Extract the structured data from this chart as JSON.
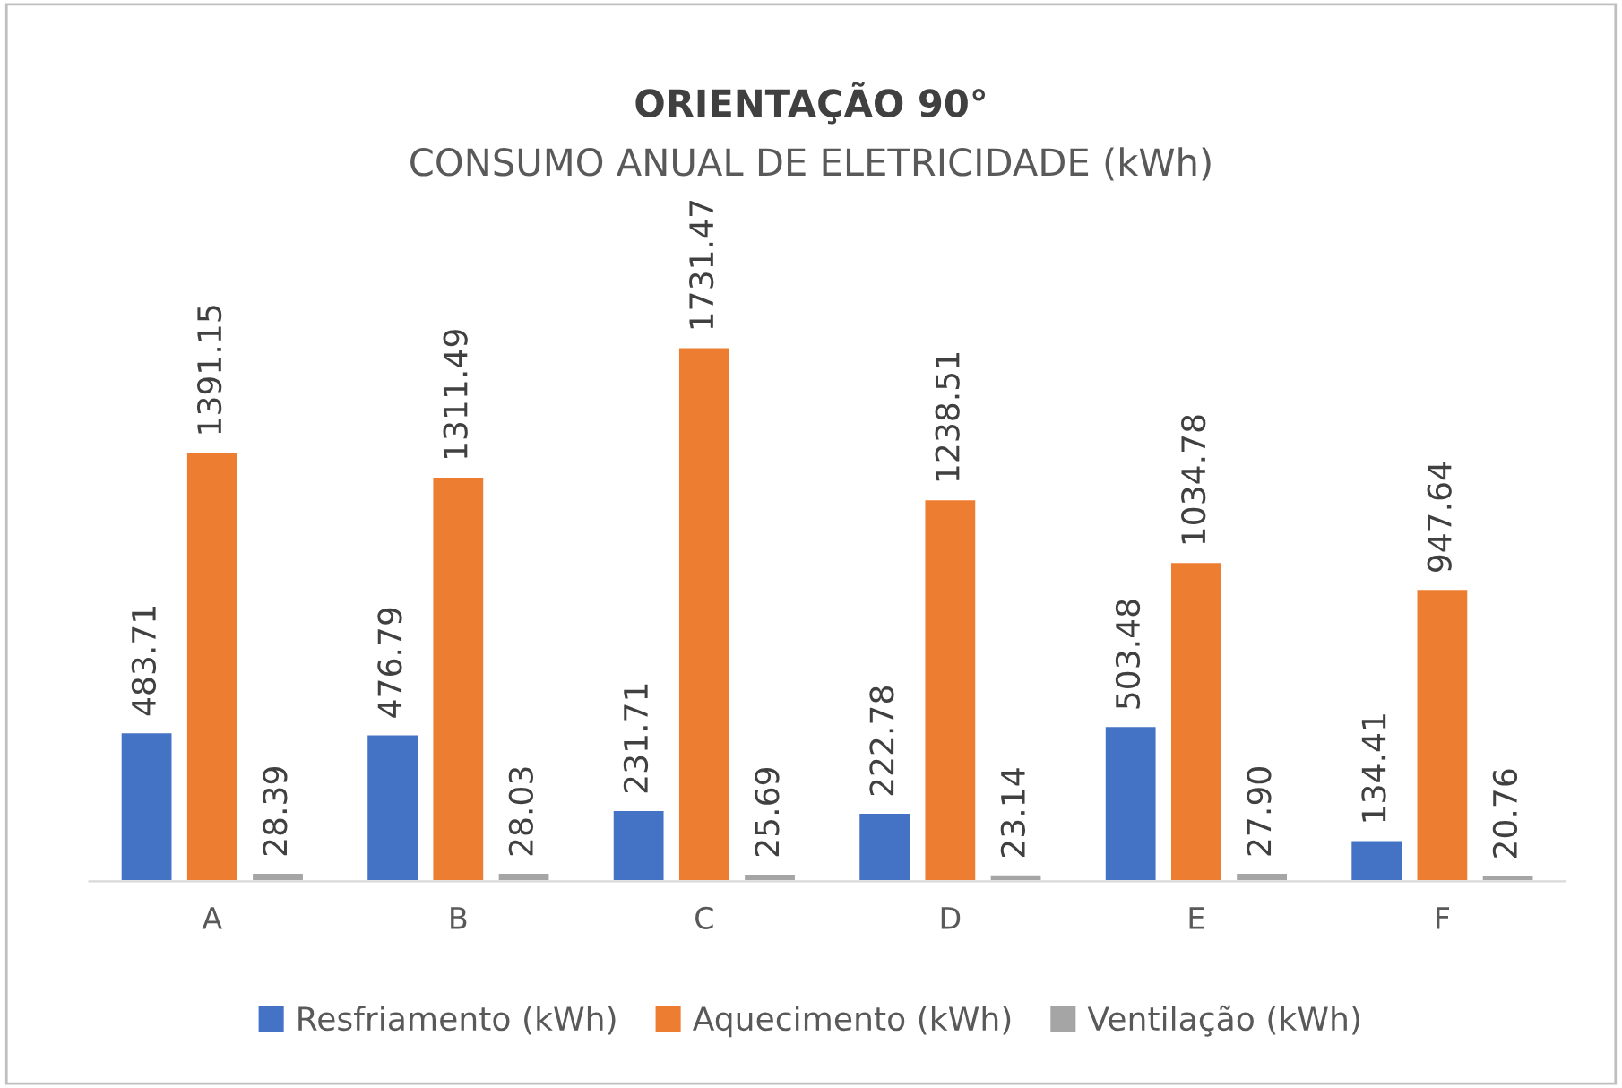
{
  "chart_data": {
    "type": "bar",
    "title": "ORIENTAÇÃO 90°",
    "subtitle": "CONSUMO ANUAL DE ELETRICIDADE (kWh)",
    "categories": [
      "A",
      "B",
      "C",
      "D",
      "E",
      "F"
    ],
    "series": [
      {
        "name": "Resfriamento (kWh)",
        "color": "#4472c4",
        "values": [
          483.71,
          476.79,
          231.71,
          222.78,
          503.48,
          134.41
        ],
        "value_labels": [
          "483.71",
          "476.79",
          "231.71",
          "222.78",
          "503.48",
          "134.41"
        ]
      },
      {
        "name": "Aquecimento (kWh)",
        "color": "#ed7d31",
        "values": [
          1391.15,
          1311.49,
          1731.47,
          1238.51,
          1034.78,
          947.64
        ],
        "value_labels": [
          "1391.15",
          "1311.49",
          "1731.47",
          "1238.51",
          "1034.78",
          "947.64"
        ]
      },
      {
        "name": "Ventilação (kWh)",
        "color": "#a5a5a5",
        "values": [
          28.39,
          28.03,
          25.69,
          23.14,
          27.9,
          20.76
        ],
        "value_labels": [
          "28.39",
          "28.03",
          "25.69",
          "23.14",
          "27.90",
          "20.76"
        ]
      }
    ],
    "legend": "bottom",
    "grid": false
  }
}
